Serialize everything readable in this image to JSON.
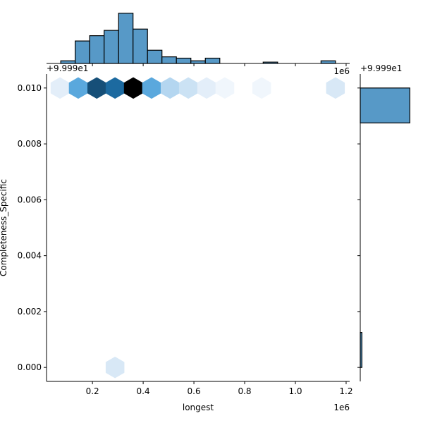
{
  "chart_data": [
    {
      "panel": "joint",
      "type": "hexbin",
      "xlabel": "longest",
      "ylabel": "Completeness_Specific",
      "x_offset_label": "1e6",
      "y_offset_label": "+9.999e1",
      "xlim": [
        0.019,
        1.214
      ],
      "ylim": [
        -0.0005,
        0.0105
      ],
      "xticks": [
        0.2,
        0.4,
        0.6,
        0.8,
        1.0,
        1.2
      ],
      "xtick_labels": [
        "0.2",
        "0.4",
        "0.6",
        "0.8",
        "1.0",
        "1.2"
      ],
      "yticks": [
        0.0,
        0.002,
        0.004,
        0.006,
        0.008,
        0.01
      ],
      "ytick_labels": [
        "0.000",
        "0.002",
        "0.004",
        "0.006",
        "0.008",
        "0.010"
      ],
      "colormap": "Blues",
      "hexes": [
        {
          "x": 0.072,
          "y": 0.01,
          "color": "#e3eef9"
        },
        {
          "x": 0.144,
          "y": 0.01,
          "color": "#5aa8dd"
        },
        {
          "x": 0.217,
          "y": 0.01,
          "color": "#164f78"
        },
        {
          "x": 0.289,
          "y": 0.01,
          "color": "#1c6aa0"
        },
        {
          "x": 0.361,
          "y": 0.01,
          "color": "#000000"
        },
        {
          "x": 0.433,
          "y": 0.01,
          "color": "#5aa8dd"
        },
        {
          "x": 0.506,
          "y": 0.01,
          "color": "#b4d6f0"
        },
        {
          "x": 0.578,
          "y": 0.01,
          "color": "#cbe2f4"
        },
        {
          "x": 0.65,
          "y": 0.01,
          "color": "#e3eef9"
        },
        {
          "x": 0.722,
          "y": 0.01,
          "color": "#f0f6fc"
        },
        {
          "x": 0.867,
          "y": 0.01,
          "color": "#f0f6fc"
        },
        {
          "x": 1.158,
          "y": 0.01,
          "color": "#d8e8f6"
        },
        {
          "x": 0.289,
          "y": 0.0,
          "color": "#d8e8f6"
        }
      ]
    },
    {
      "panel": "marginal-x",
      "type": "bar",
      "color": "#5799c7",
      "bin_start": 0.075,
      "bin_width": 0.057,
      "counts": [
        2,
        17,
        21,
        25,
        38,
        26,
        10,
        5,
        4,
        2,
        4,
        0,
        0,
        0,
        1,
        0,
        0,
        0,
        2
      ],
      "ylim": [
        0,
        40
      ]
    },
    {
      "panel": "marginal-y",
      "type": "barh",
      "color": "#5799c7",
      "offset_label": "+9.999e1",
      "bin_start": 0.0,
      "bin_width": 0.00125,
      "counts": [
        5,
        0,
        0,
        0,
        0,
        0,
        0,
        152
      ],
      "xlim": [
        0,
        160
      ]
    }
  ]
}
